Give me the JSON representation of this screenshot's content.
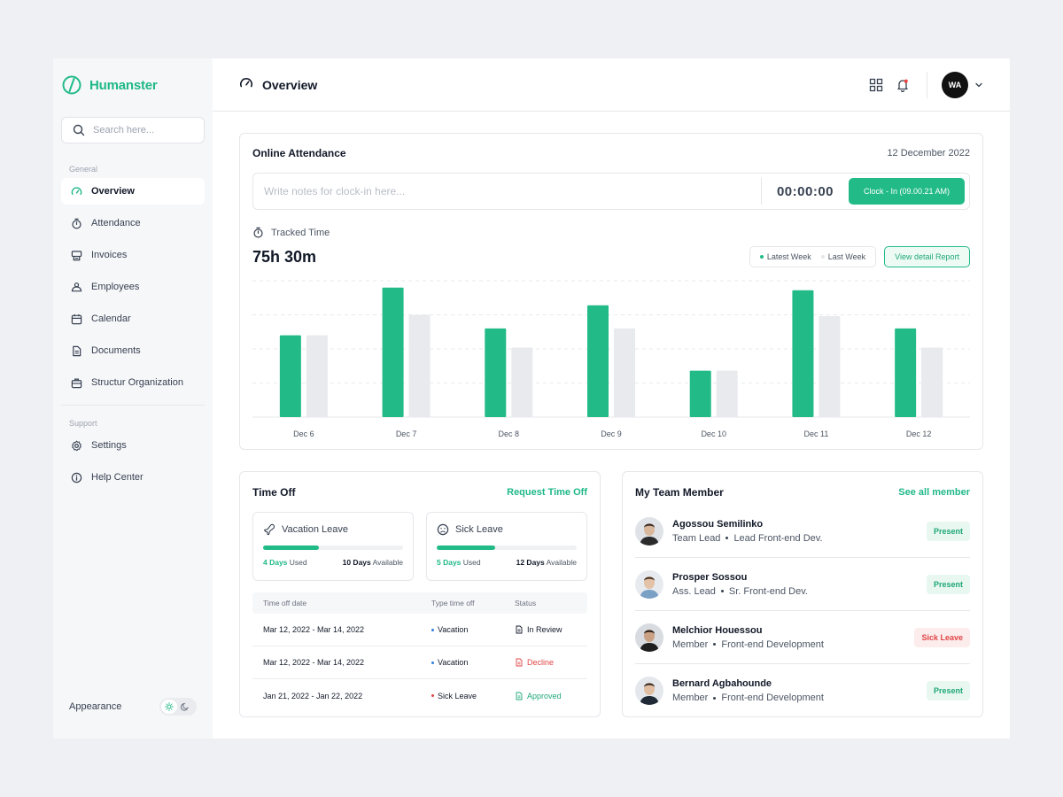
{
  "brand": {
    "name": "Humanster",
    "accent": "#22bb88"
  },
  "search": {
    "placeholder": "Search here..."
  },
  "sidebar": {
    "general_label": "General",
    "items": [
      {
        "label": "Overview",
        "icon": "gauge-icon"
      },
      {
        "label": "Attendance",
        "icon": "stopwatch-icon"
      },
      {
        "label": "Invoices",
        "icon": "receipt-icon"
      },
      {
        "label": "Employees",
        "icon": "users-icon"
      },
      {
        "label": "Calendar",
        "icon": "calendar-icon"
      },
      {
        "label": "Documents",
        "icon": "document-icon"
      },
      {
        "label": "Structur Organization",
        "icon": "briefcase-icon"
      }
    ],
    "support_label": "Support",
    "support_items": [
      {
        "label": "Settings",
        "icon": "gear-icon"
      },
      {
        "label": "Help Center",
        "icon": "info-icon"
      }
    ],
    "appearance_label": "Appearance"
  },
  "header": {
    "title": "Overview",
    "avatar_initials": "WA"
  },
  "attendance": {
    "title": "Online Attendance",
    "date": "12 December 2022",
    "notes_placeholder": "Write notes for clock-in here...",
    "timer": "00:00:00",
    "clock_button": "Clock - In (09.00.21 AM)",
    "tracked_label": "Tracked Time",
    "tracked_value": "75h 30m",
    "legend_latest": "Latest Week",
    "legend_last": "Last Week",
    "report_button": "View detail Report"
  },
  "chart_data": {
    "type": "bar",
    "categories": [
      "Dec 6",
      "Dec 7",
      "Dec 8",
      "Dec 9",
      "Dec 10",
      "Dec 11",
      "Dec 12"
    ],
    "series": [
      {
        "name": "Latest Week",
        "color": "#22bb88",
        "values": [
          60,
          95,
          65,
          82,
          34,
          93,
          65
        ]
      },
      {
        "name": "Last Week",
        "color": "#e8eaed",
        "values": [
          60,
          75,
          51,
          65,
          34,
          74,
          51
        ]
      }
    ],
    "ylim": [
      0,
      100
    ],
    "grid": true
  },
  "timeoff": {
    "title": "Time Off",
    "request_link": "Request Time Off",
    "vacation": {
      "label": "Vacation Leave",
      "used_num": "4 Days",
      "used_word": "Used",
      "avail_num": "10 Days",
      "avail_word": "Available",
      "progress": 0.4
    },
    "sick": {
      "label": "Sick Leave",
      "used_num": "5 Days",
      "used_word": "Used",
      "avail_num": "12 Days",
      "avail_word": "Available",
      "progress": 0.42
    },
    "columns": [
      "Time off date",
      "Type time off",
      "Status"
    ],
    "rows": [
      {
        "date": "Mar 12, 2022  -  Mar 14, 2022",
        "type": "Vacation",
        "type_color": "#2f7fe0",
        "status": "In Review",
        "status_color": "#111827"
      },
      {
        "date": "Mar 12, 2022  -  Mar 14, 2022",
        "type": "Vacation",
        "type_color": "#2f7fe0",
        "status": "Decline",
        "status_color": "#e04545"
      },
      {
        "date": "Jan 21, 2022  -  Jan 22, 2022",
        "type": "Sick Leave",
        "type_color": "#e04545",
        "status": "Approved",
        "status_color": "#1fa877"
      }
    ]
  },
  "team": {
    "title": "My Team Member",
    "see_all": "See all member",
    "members": [
      {
        "name": "Agossou Semilinko",
        "role": "Team Lead",
        "position": "Lead Front-end Dev.",
        "status": "Present"
      },
      {
        "name": "Prosper Sossou",
        "role": "Ass. Lead",
        "position": "Sr. Front-end Dev.",
        "status": "Present"
      },
      {
        "name": "Melchior Houessou",
        "role": "Member",
        "position": "Front-end Development",
        "status": "Sick Leave"
      },
      {
        "name": "Bernard Agbahounde",
        "role": "Member",
        "position": "Front-end Development",
        "status": "Present"
      }
    ]
  }
}
